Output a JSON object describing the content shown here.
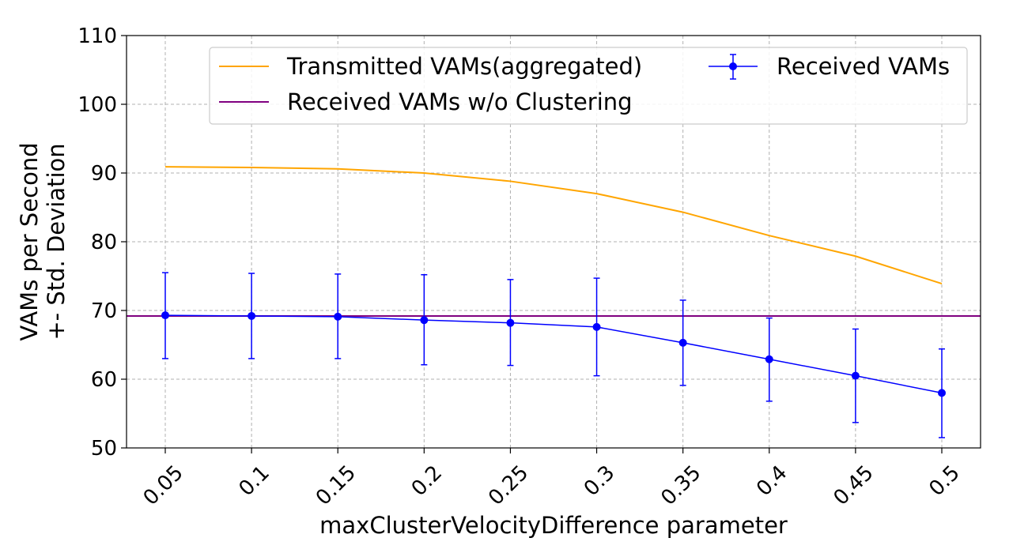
{
  "chart_data": {
    "type": "line",
    "xlabel": "maxClusterVelocityDifference parameter",
    "ylabel_line1": "VAMs per Second",
    "ylabel_line2": "+- Std. Deviation",
    "categories": [
      "0.05",
      "0.1",
      "0.15",
      "0.2",
      "0.25",
      "0.3",
      "0.35",
      "0.4",
      "0.45",
      "0.5"
    ],
    "ylim": [
      50,
      110
    ],
    "yticks": [
      "50",
      "60",
      "70",
      "80",
      "90",
      "100",
      "110"
    ],
    "grid": true,
    "legend_position": "top",
    "series": [
      {
        "name": "Transmitted VAMs(aggregated)",
        "color": "#ffa500",
        "marker": "none",
        "values": [
          90.9,
          90.8,
          90.6,
          90.0,
          88.8,
          87.0,
          84.3,
          80.9,
          77.9,
          73.9
        ]
      },
      {
        "name": "Received VAMs w/o Clustering",
        "color": "#800080",
        "kind": "horizontal-line",
        "value": 69.2
      },
      {
        "name": "Received VAMs",
        "color": "#0000ff",
        "marker": "circle",
        "values": [
          69.3,
          69.2,
          69.1,
          68.6,
          68.2,
          67.6,
          65.3,
          62.9,
          60.5,
          58.0
        ],
        "error_low": [
          63.0,
          63.0,
          63.0,
          62.1,
          62.0,
          60.5,
          59.1,
          56.8,
          53.7,
          51.5
        ],
        "error_high": [
          75.5,
          75.4,
          75.3,
          75.2,
          74.5,
          74.7,
          71.5,
          68.9,
          67.3,
          64.4
        ]
      }
    ]
  }
}
